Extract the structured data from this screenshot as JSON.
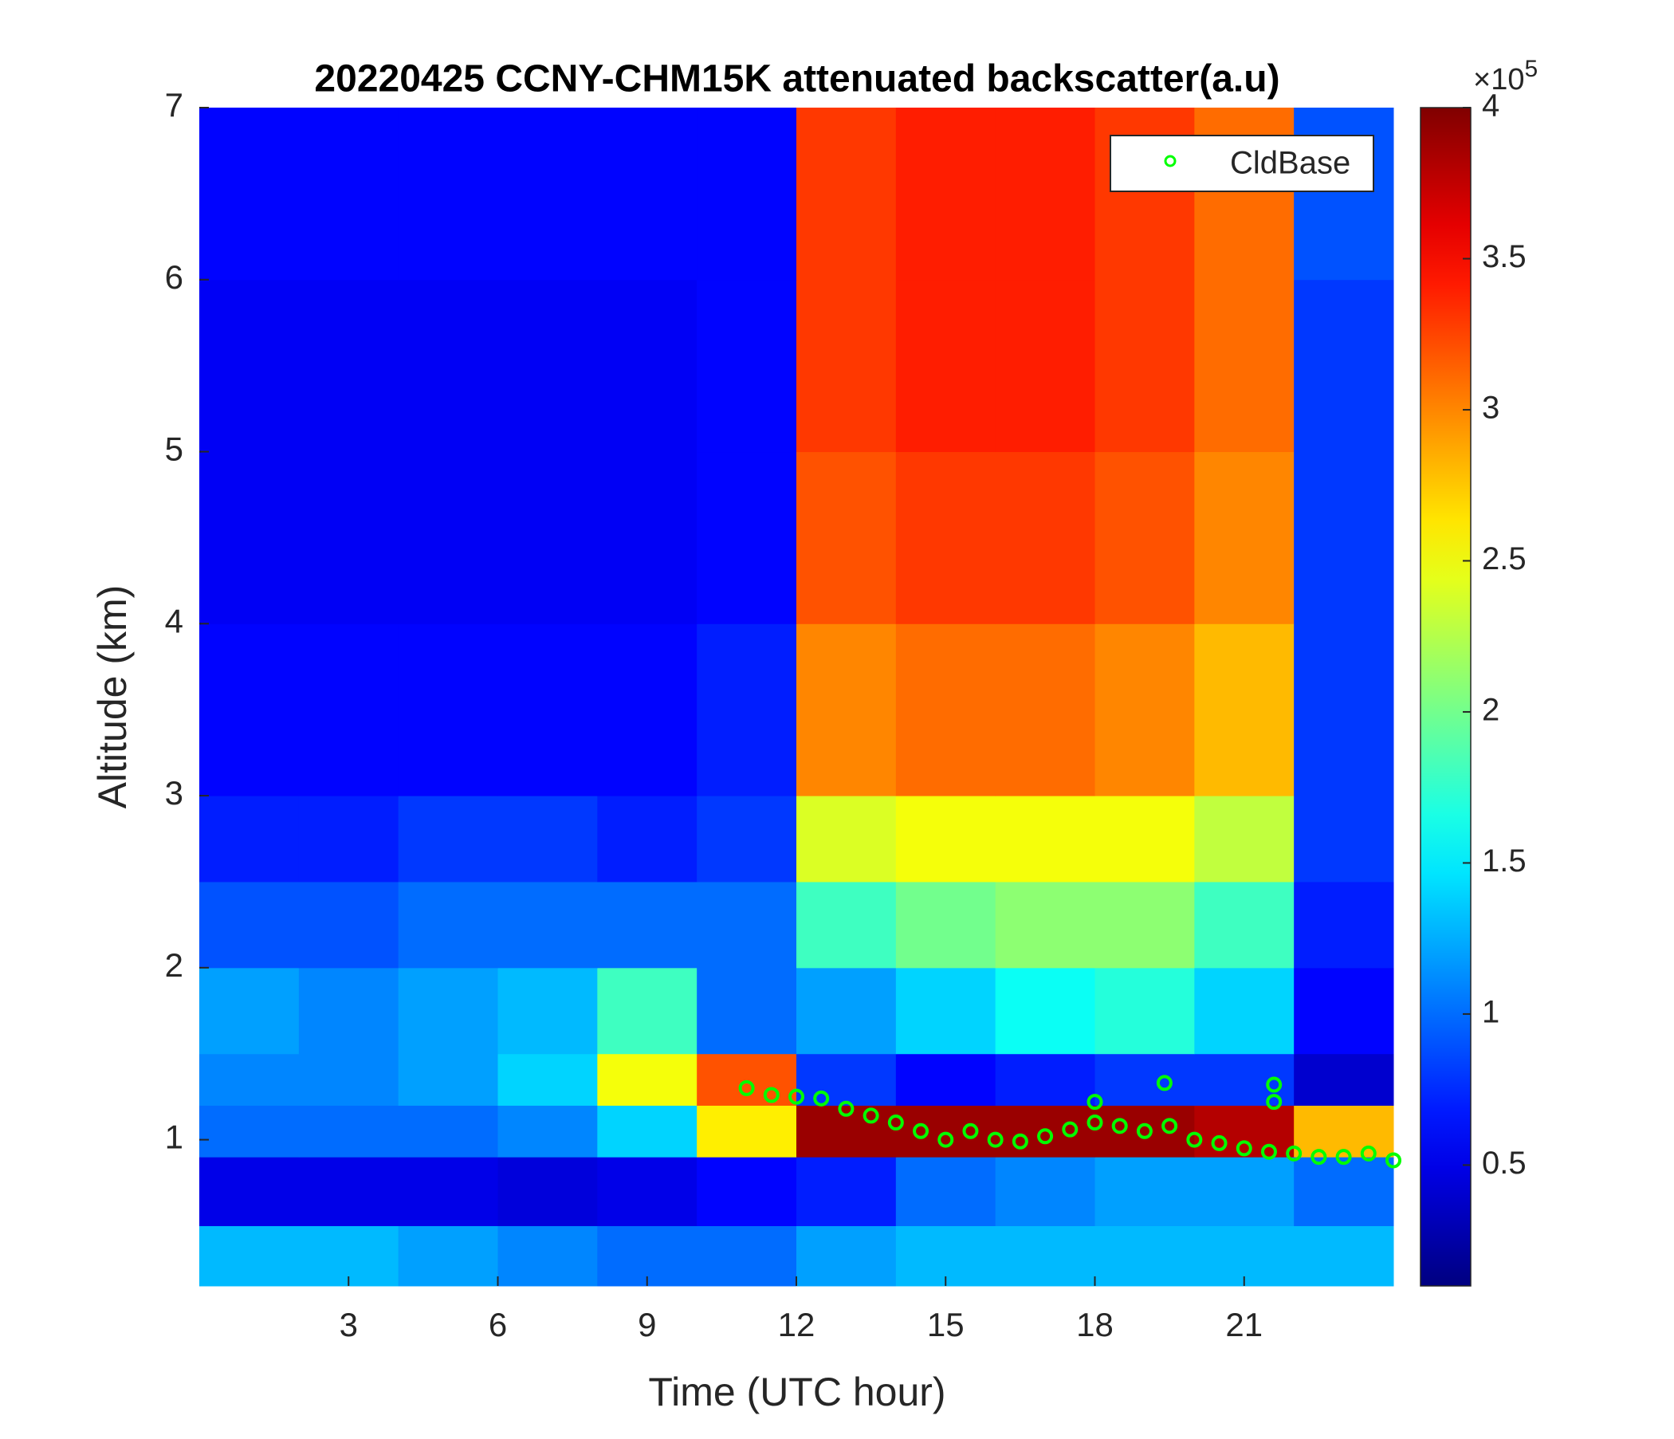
{
  "chart_data": {
    "type": "heatmap",
    "title": "20220425 CCNY-CHM15K attenuated backscatter(a.u)",
    "xlabel": "Time (UTC hour)",
    "ylabel": "Altitude (km)",
    "colormap": "jet",
    "x_edges": [
      0,
      2,
      4,
      6,
      8,
      10,
      12,
      14,
      16,
      18,
      20,
      22,
      24
    ],
    "y_edges": [
      0.15,
      0.5,
      0.9,
      1.2,
      1.5,
      2,
      2.5,
      3,
      4,
      5,
      6,
      7
    ],
    "z": [
      [
        1.3,
        1.3,
        1.2,
        1.1,
        1.0,
        1.0,
        1.2,
        1.3,
        1.3,
        1.3,
        1.3,
        1.3
      ],
      [
        0.5,
        0.5,
        0.5,
        0.45,
        0.5,
        0.6,
        0.7,
        1.0,
        1.1,
        1.2,
        1.2,
        1.0
      ],
      [
        1.0,
        1.0,
        1.0,
        1.1,
        1.4,
        2.6,
        3.9,
        3.9,
        3.9,
        3.9,
        3.8,
        2.8
      ],
      [
        1.1,
        1.1,
        1.2,
        1.4,
        2.5,
        3.2,
        0.8,
        0.6,
        0.7,
        0.8,
        0.8,
        0.4
      ],
      [
        1.2,
        1.1,
        1.2,
        1.3,
        1.8,
        1.0,
        1.2,
        1.4,
        1.6,
        1.7,
        1.4,
        0.6
      ],
      [
        0.9,
        0.9,
        1.0,
        1.0,
        1.0,
        1.0,
        1.8,
        2.0,
        2.1,
        2.1,
        1.8,
        0.7
      ],
      [
        0.7,
        0.7,
        0.8,
        0.8,
        0.7,
        0.8,
        2.4,
        2.5,
        2.5,
        2.5,
        2.3,
        0.8
      ],
      [
        0.6,
        0.6,
        0.6,
        0.6,
        0.6,
        0.7,
        3.0,
        3.1,
        3.1,
        3.0,
        2.8,
        0.8
      ],
      [
        0.55,
        0.55,
        0.55,
        0.55,
        0.55,
        0.6,
        3.2,
        3.3,
        3.3,
        3.2,
        3.0,
        0.8
      ],
      [
        0.55,
        0.55,
        0.55,
        0.55,
        0.55,
        0.6,
        3.3,
        3.4,
        3.4,
        3.3,
        3.1,
        0.8
      ],
      [
        0.6,
        0.6,
        0.6,
        0.6,
        0.6,
        0.6,
        3.3,
        3.4,
        3.4,
        3.3,
        3.1,
        0.9
      ]
    ],
    "clim": [
      0.1,
      4
    ],
    "cticks": [
      0.5,
      1,
      1.5,
      2,
      2.5,
      3,
      3.5,
      4
    ],
    "colorbar_exponent": {
      "base": "×10",
      "power": "5"
    },
    "xlim": [
      0,
      24
    ],
    "ylim": [
      0.15,
      7
    ],
    "xticks": [
      3,
      6,
      9,
      12,
      15,
      18,
      21
    ],
    "yticks": [
      1,
      2,
      3,
      4,
      5,
      6,
      7
    ],
    "legend": "upper right",
    "series": [
      {
        "name": "CldBase",
        "type": "scatter",
        "color": "#00ff00",
        "x": [
          11,
          11.5,
          12,
          12.5,
          13,
          13.5,
          14,
          14.5,
          15,
          15.5,
          16,
          16.5,
          17,
          17.5,
          18,
          18.5,
          19,
          19.5,
          20,
          20.5,
          21,
          21.5,
          22,
          22.5,
          23,
          23.5,
          24,
          18,
          19.4,
          21.6,
          21.6
        ],
        "y": [
          1.3,
          1.26,
          1.25,
          1.24,
          1.18,
          1.14,
          1.1,
          1.05,
          1.0,
          1.05,
          1.0,
          0.99,
          1.02,
          1.06,
          1.1,
          1.08,
          1.05,
          1.08,
          1.0,
          0.98,
          0.95,
          0.93,
          0.92,
          0.9,
          0.9,
          0.92,
          0.88,
          1.22,
          1.33,
          1.32,
          1.22
        ]
      }
    ]
  }
}
